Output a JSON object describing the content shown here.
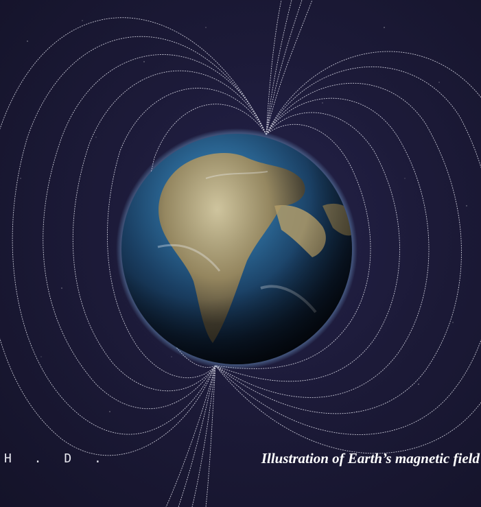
{
  "illustration": {
    "subject": "earth-with-magnetic-field-lines",
    "colors": {
      "space_background": "#1c1a38",
      "field_line": "#d9d9e6",
      "ocean": "#1f4f7a",
      "land": "#b9a776",
      "atmosphere_glow": "#7fb4e6"
    }
  },
  "corner_text": "H . D .",
  "caption": "Illustration of Earth’s magnetic field"
}
